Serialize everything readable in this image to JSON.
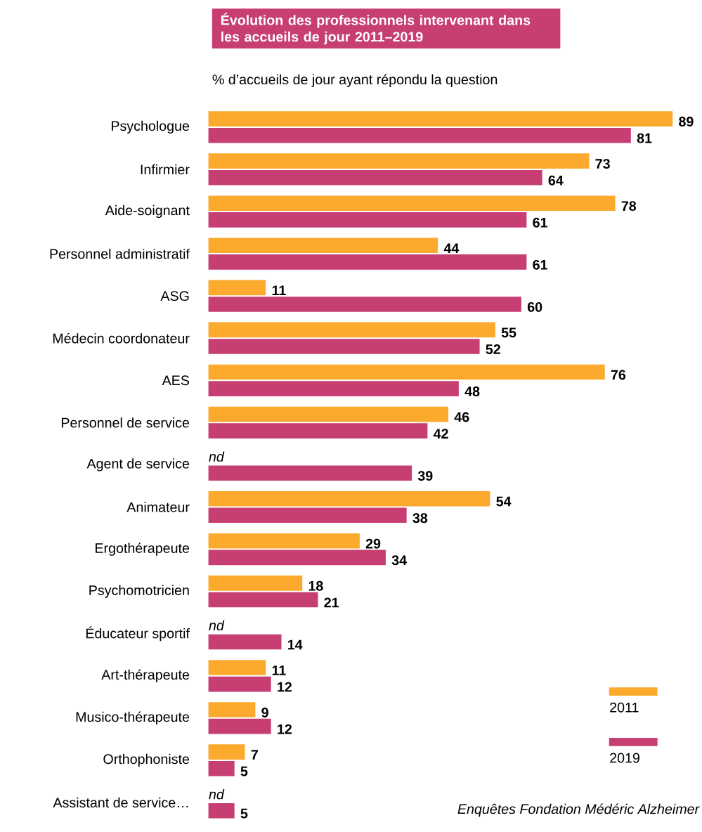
{
  "chart_data": {
    "type": "bar",
    "orientation": "horizontal",
    "title": "Évolution des professionnels intervenant dans les accueils de jour 2011–2019",
    "subtitle": "% d’accueils de jour ayant répondu la question",
    "categories": [
      "Psychologue",
      "Infirmier",
      "Aide-soignant",
      "Personnel administratif",
      "ASG",
      "Médecin coordonateur",
      "AES",
      "Personnel de service",
      "Agent de service",
      "Animateur",
      "Ergothérapeute",
      "Psychomotricien",
      "Éducateur sportif",
      "Art-thérapeute",
      "Musico-thérapeute",
      "Orthophoniste",
      "Assistant de service…"
    ],
    "series": [
      {
        "name": "2011",
        "color": "#fbaa2e",
        "values": [
          89,
          73,
          78,
          44,
          11,
          55,
          76,
          46,
          null,
          54,
          29,
          18,
          null,
          11,
          9,
          7,
          null
        ],
        "value_labels": [
          "89",
          "73",
          "78",
          "44",
          "11",
          "55",
          "76",
          "46",
          "nd",
          "54",
          "29",
          "18",
          "nd",
          "11",
          "9",
          "7",
          "nd"
        ]
      },
      {
        "name": "2019",
        "color": "#c73f72",
        "values": [
          81,
          64,
          61,
          61,
          60,
          52,
          48,
          42,
          39,
          38,
          34,
          21,
          14,
          12,
          12,
          5,
          5
        ],
        "value_labels": [
          "81",
          "64",
          "61",
          "61",
          "60",
          "52",
          "48",
          "42",
          "39",
          "38",
          "34",
          "21",
          "14",
          "12",
          "12",
          "5",
          "5"
        ]
      }
    ],
    "legend": "bottom right",
    "annotations": [
      "Enquêtes Fondation Médéric Alzheimer"
    ]
  }
}
